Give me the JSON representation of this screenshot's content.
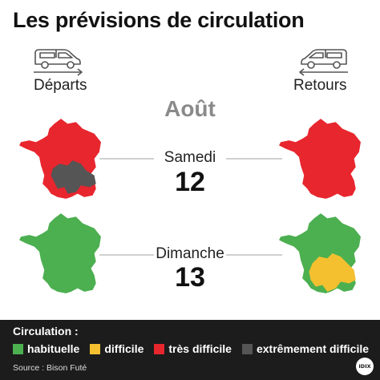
{
  "title": "Les prévisions de circulation",
  "columns": {
    "departs": "Départs",
    "retours": "Retours"
  },
  "month": "Août",
  "days": [
    {
      "name": "Samedi",
      "number": "12",
      "departs_status": "très difficile",
      "departs_zone": "extrêmement difficile",
      "retours_status": "très difficile"
    },
    {
      "name": "Dimanche",
      "number": "13",
      "departs_status": "habituelle",
      "retours_status": "habituelle",
      "retours_zone": "difficile"
    }
  ],
  "legend": {
    "title": "Circulation :",
    "items": [
      {
        "label": "habituelle",
        "color": "#4caf50"
      },
      {
        "label": "difficile",
        "color": "#f4c030"
      },
      {
        "label": "très difficile",
        "color": "#e8262e"
      },
      {
        "label": "extrêmement difficile",
        "color": "#555555"
      }
    ]
  },
  "source": "Source : Bison Futé",
  "logo": "IDIX",
  "icons": {
    "car_left": "car-arrow-right-icon",
    "car_right": "car-arrow-left-icon"
  }
}
